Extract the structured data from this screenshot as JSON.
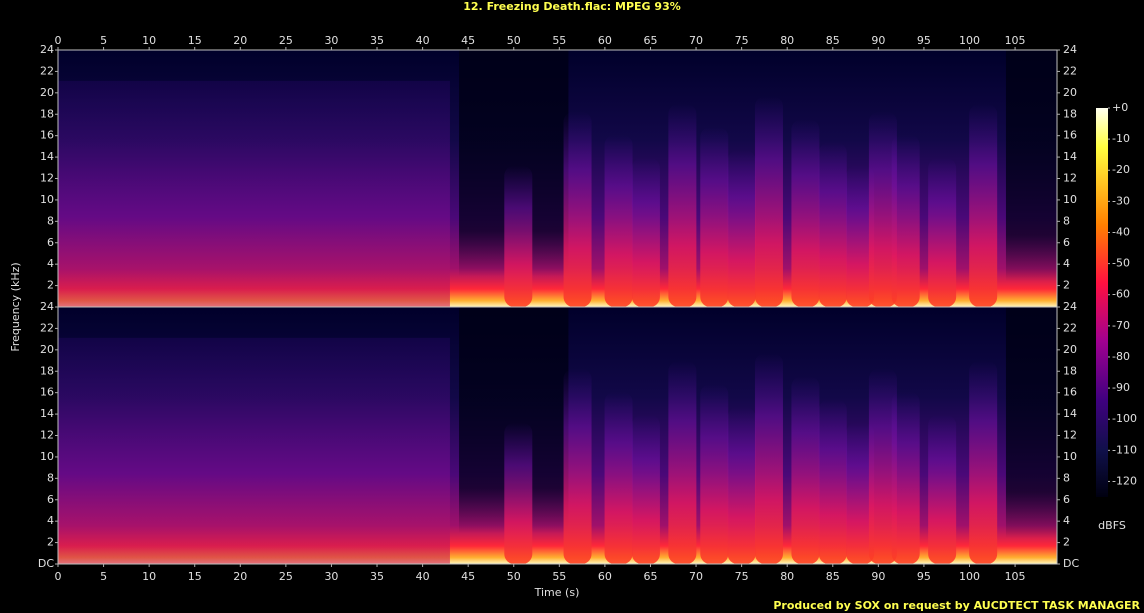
{
  "chart_data": [
    {
      "type": "spectrogram",
      "title": "12. Freezing Death.flac: MPEG 93%",
      "y_label": "Frequency (kHz)",
      "xlim": [
        0,
        109.6
      ],
      "xticks": [
        0,
        5,
        10,
        15,
        20,
        25,
        30,
        35,
        40,
        45,
        50,
        55,
        60,
        65,
        70,
        75,
        80,
        85,
        90,
        95,
        100,
        105
      ],
      "ylim": [
        0,
        24
      ],
      "yticks": [
        2,
        4,
        6,
        8,
        10,
        12,
        14,
        16,
        18,
        20,
        22,
        24
      ],
      "colorbar": {
        "label": "dBFS",
        "lim": [
          -125,
          0
        ],
        "ticks": [
          {
            "value": 0,
            "label": "+0"
          },
          -10,
          -20,
          -30,
          -40,
          -50,
          -60,
          -70,
          -80,
          -90,
          -100,
          -110,
          -120
        ]
      }
    },
    {
      "type": "spectrogram",
      "x_label": "Time (s)",
      "xlim": [
        0,
        109.6
      ],
      "xticks": [
        0,
        5,
        10,
        15,
        20,
        25,
        30,
        35,
        40,
        45,
        50,
        55,
        60,
        65,
        70,
        75,
        80,
        85,
        90,
        95,
        100,
        105
      ],
      "ylim": [
        0,
        24
      ],
      "yticks": [
        {
          "value": 0,
          "label": "DC"
        },
        2,
        4,
        6,
        8,
        10,
        12,
        14,
        16,
        18,
        20,
        22,
        24
      ]
    }
  ],
  "footer": "Produced by SOX on request by AUCDTECT TASK MANAGER"
}
